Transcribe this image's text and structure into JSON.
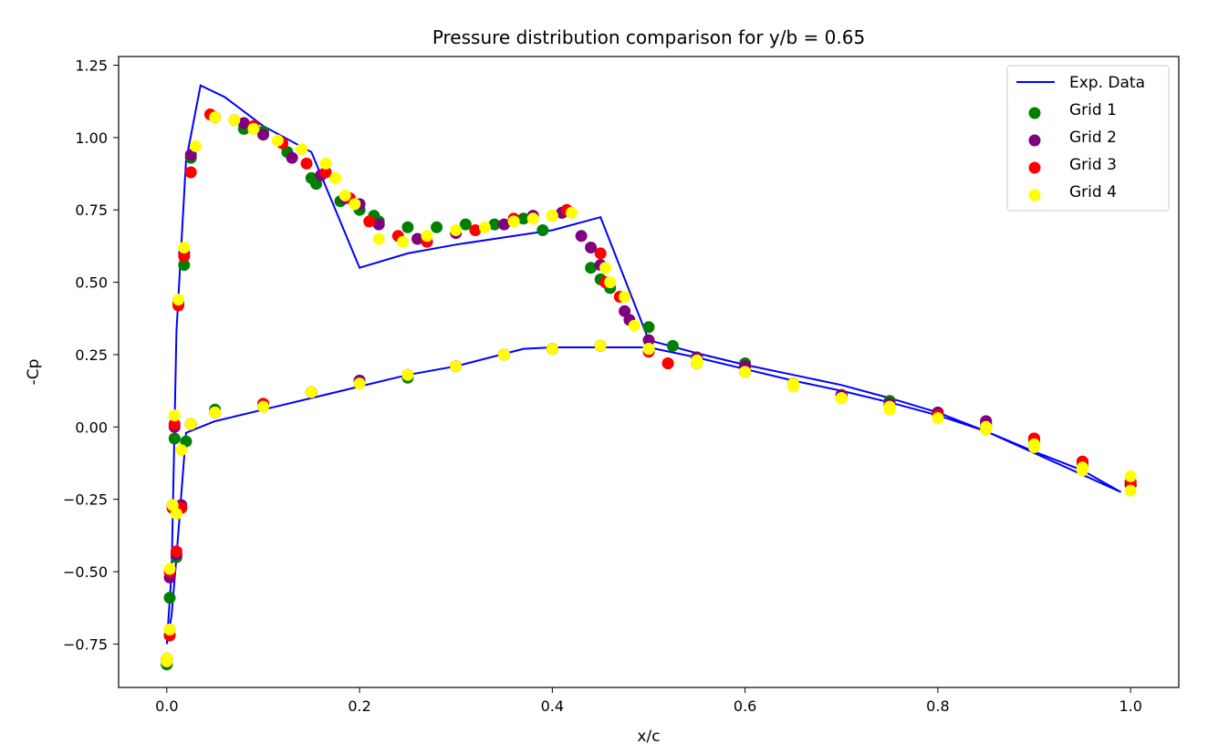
{
  "chart_data": {
    "type": "scatter",
    "title": "Pressure distribution comparison for y/b = 0.65",
    "xlabel": "x/c",
    "ylabel": "-Cp",
    "xlim": [
      -0.05,
      1.05
    ],
    "ylim": [
      -0.9,
      1.28
    ],
    "xticks": [
      0.0,
      0.2,
      0.4,
      0.6,
      0.8,
      1.0
    ],
    "xtick_labels": [
      "0.0",
      "0.2",
      "0.4",
      "0.6",
      "0.8",
      "1.0"
    ],
    "yticks": [
      -0.75,
      -0.5,
      -0.25,
      0.0,
      0.25,
      0.5,
      0.75,
      1.0,
      1.25
    ],
    "ytick_labels": [
      "−0.75",
      "−0.50",
      "−0.25",
      "0.00",
      "0.25",
      "0.50",
      "0.75",
      "1.00",
      "1.25"
    ],
    "grid": false,
    "legend_position": "top-right",
    "line_series": [
      {
        "name": "Exp. Data",
        "color": "#0000ff",
        "x": [
          0.0,
          0.005,
          0.01,
          0.02,
          0.035,
          0.06,
          0.1,
          0.15,
          0.2,
          0.25,
          0.3,
          0.35,
          0.4,
          0.45,
          0.5,
          0.55,
          0.6,
          0.65,
          0.7,
          0.75,
          0.8,
          0.85,
          0.9,
          0.95,
          0.99,
          0.95,
          0.9,
          0.85,
          0.8,
          0.75,
          0.7,
          0.65,
          0.6,
          0.55,
          0.5,
          0.45,
          0.4,
          0.37,
          0.3,
          0.25,
          0.2,
          0.15,
          0.1,
          0.05,
          0.02,
          0.01,
          0.005,
          0.0
        ],
        "y": [
          -0.75,
          -0.5,
          0.33,
          0.92,
          1.18,
          1.14,
          1.04,
          0.95,
          0.55,
          0.6,
          0.63,
          0.655,
          0.68,
          0.725,
          0.3,
          0.255,
          0.215,
          0.18,
          0.145,
          0.1,
          0.05,
          -0.015,
          -0.085,
          -0.15,
          -0.225,
          -0.165,
          -0.09,
          -0.015,
          0.04,
          0.085,
          0.125,
          0.16,
          0.2,
          0.24,
          0.275,
          0.275,
          0.275,
          0.27,
          0.21,
          0.18,
          0.14,
          0.1,
          0.06,
          0.02,
          -0.02,
          -0.45,
          -0.65,
          -0.75
        ]
      }
    ],
    "series": [
      {
        "name": "Grid 1",
        "color": "#008000",
        "x": [
          0.0,
          0.003,
          0.008,
          0.012,
          0.018,
          0.025,
          0.05,
          0.08,
          0.1,
          0.125,
          0.15,
          0.155,
          0.18,
          0.2,
          0.215,
          0.22,
          0.25,
          0.28,
          0.31,
          0.34,
          0.37,
          0.39,
          0.41,
          0.44,
          0.45,
          0.46,
          0.5,
          0.525,
          0.55,
          0.6,
          0.65,
          0.7,
          0.75,
          0.8,
          0.85,
          0.9,
          0.95,
          1.0,
          0.0,
          0.003,
          0.006,
          0.01,
          0.015,
          0.02,
          0.025,
          0.05,
          0.1,
          0.15,
          0.2,
          0.25,
          0.3,
          0.35,
          0.4,
          0.45,
          0.5,
          0.55,
          0.6,
          0.65,
          0.7,
          0.75,
          0.8,
          0.85,
          0.9,
          0.95,
          1.0
        ],
        "y": [
          -0.82,
          -0.59,
          -0.04,
          0.43,
          0.56,
          0.93,
          1.07,
          1.03,
          1.02,
          0.95,
          0.86,
          0.84,
          0.78,
          0.75,
          0.73,
          0.71,
          0.69,
          0.69,
          0.7,
          0.7,
          0.72,
          0.68,
          0.74,
          0.55,
          0.51,
          0.48,
          0.345,
          0.28,
          0.24,
          0.22,
          0.15,
          0.11,
          0.09,
          0.04,
          0.01,
          -0.05,
          -0.13,
          -0.2,
          -0.82,
          -0.72,
          -0.28,
          -0.45,
          -0.28,
          -0.05,
          0.01,
          0.06,
          0.07,
          0.12,
          0.16,
          0.17,
          0.21,
          0.25,
          0.27,
          0.28,
          0.27,
          0.24,
          0.21,
          0.15,
          0.11,
          0.08,
          0.04,
          0.01,
          -0.05,
          -0.13,
          -0.2
        ]
      },
      {
        "name": "Grid 2",
        "color": "#800080",
        "x": [
          0.0,
          0.003,
          0.008,
          0.012,
          0.018,
          0.025,
          0.05,
          0.08,
          0.1,
          0.13,
          0.16,
          0.185,
          0.2,
          0.22,
          0.26,
          0.3,
          0.35,
          0.38,
          0.41,
          0.43,
          0.44,
          0.45,
          0.475,
          0.48,
          0.5,
          0.55,
          0.6,
          0.65,
          0.7,
          0.75,
          0.8,
          0.85,
          0.9,
          0.95,
          1.0,
          0.0,
          0.003,
          0.006,
          0.01,
          0.015,
          0.025,
          0.05,
          0.1,
          0.15,
          0.2,
          0.25,
          0.3,
          0.35,
          0.4,
          0.45,
          0.5,
          0.55,
          0.6,
          0.65,
          0.7,
          0.75,
          0.8,
          0.85,
          0.9,
          0.95,
          1.0
        ],
        "y": [
          -0.81,
          -0.52,
          0.0,
          0.43,
          0.6,
          0.94,
          1.07,
          1.05,
          1.01,
          0.93,
          0.87,
          0.79,
          0.77,
          0.7,
          0.65,
          0.67,
          0.7,
          0.73,
          0.74,
          0.66,
          0.62,
          0.56,
          0.4,
          0.37,
          0.3,
          0.24,
          0.21,
          0.15,
          0.11,
          0.08,
          0.04,
          0.02,
          -0.04,
          -0.12,
          -0.2,
          -0.8,
          -0.7,
          -0.27,
          -0.44,
          -0.27,
          0.01,
          0.05,
          0.08,
          0.12,
          0.16,
          0.18,
          0.21,
          0.25,
          0.27,
          0.28,
          0.27,
          0.24,
          0.21,
          0.15,
          0.11,
          0.08,
          0.05,
          0.02,
          -0.04,
          -0.12,
          -0.2
        ]
      },
      {
        "name": "Grid 3",
        "color": "#ff0000",
        "x": [
          0.0,
          0.003,
          0.008,
          0.012,
          0.018,
          0.025,
          0.045,
          0.07,
          0.09,
          0.12,
          0.145,
          0.165,
          0.19,
          0.21,
          0.24,
          0.27,
          0.32,
          0.36,
          0.4,
          0.415,
          0.45,
          0.455,
          0.47,
          0.5,
          0.52,
          0.55,
          0.6,
          0.65,
          0.7,
          0.75,
          0.8,
          0.85,
          0.9,
          0.95,
          1.0,
          0.0,
          0.003,
          0.006,
          0.01,
          0.015,
          0.025,
          0.05,
          0.1,
          0.15,
          0.2,
          0.25,
          0.3,
          0.35,
          0.4,
          0.45,
          0.5,
          0.52,
          0.55,
          0.6,
          0.65,
          0.7,
          0.75,
          0.8,
          0.85,
          0.9,
          0.95,
          1.0
        ],
        "y": [
          -0.81,
          -0.5,
          0.01,
          0.42,
          0.59,
          0.88,
          1.08,
          1.06,
          1.04,
          0.98,
          0.91,
          0.88,
          0.79,
          0.71,
          0.66,
          0.64,
          0.68,
          0.72,
          0.73,
          0.75,
          0.6,
          0.5,
          0.45,
          0.26,
          0.22,
          0.22,
          0.19,
          0.15,
          0.1,
          0.07,
          0.04,
          0.0,
          -0.04,
          -0.12,
          -0.19,
          -0.8,
          -0.72,
          -0.28,
          -0.43,
          -0.28,
          0.01,
          0.05,
          0.08,
          0.12,
          0.15,
          0.18,
          0.21,
          0.25,
          0.27,
          0.28,
          0.27,
          0.22,
          0.22,
          0.19,
          0.15,
          0.1,
          0.07,
          0.04,
          0.0,
          -0.04,
          -0.12,
          -0.19
        ]
      },
      {
        "name": "Grid 4",
        "color": "#ffff00",
        "x": [
          0.0,
          0.003,
          0.008,
          0.012,
          0.018,
          0.03,
          0.05,
          0.07,
          0.09,
          0.115,
          0.14,
          0.165,
          0.175,
          0.185,
          0.195,
          0.22,
          0.245,
          0.27,
          0.3,
          0.33,
          0.36,
          0.38,
          0.4,
          0.42,
          0.455,
          0.46,
          0.475,
          0.485,
          0.5,
          0.55,
          0.6,
          0.65,
          0.7,
          0.75,
          0.8,
          0.85,
          0.9,
          0.95,
          1.0,
          0.0,
          0.003,
          0.006,
          0.01,
          0.015,
          0.025,
          0.05,
          0.1,
          0.15,
          0.2,
          0.25,
          0.3,
          0.35,
          0.4,
          0.45,
          0.5,
          0.55,
          0.6,
          0.65,
          0.7,
          0.75,
          0.8,
          0.85,
          0.9,
          0.95,
          1.0
        ],
        "y": [
          -0.81,
          -0.49,
          0.04,
          0.44,
          0.62,
          0.97,
          1.07,
          1.06,
          1.03,
          0.99,
          0.96,
          0.91,
          0.86,
          0.8,
          0.77,
          0.65,
          0.64,
          0.66,
          0.68,
          0.69,
          0.71,
          0.72,
          0.73,
          0.74,
          0.55,
          0.5,
          0.45,
          0.35,
          0.27,
          0.22,
          0.19,
          0.15,
          0.1,
          0.07,
          0.03,
          0.0,
          -0.06,
          -0.14,
          -0.17,
          -0.8,
          -0.7,
          -0.27,
          -0.3,
          -0.08,
          0.01,
          0.05,
          0.07,
          0.12,
          0.15,
          0.18,
          0.21,
          0.25,
          0.27,
          0.28,
          0.27,
          0.23,
          0.19,
          0.14,
          0.1,
          0.06,
          0.03,
          -0.01,
          -0.07,
          -0.15,
          -0.22
        ]
      }
    ]
  }
}
